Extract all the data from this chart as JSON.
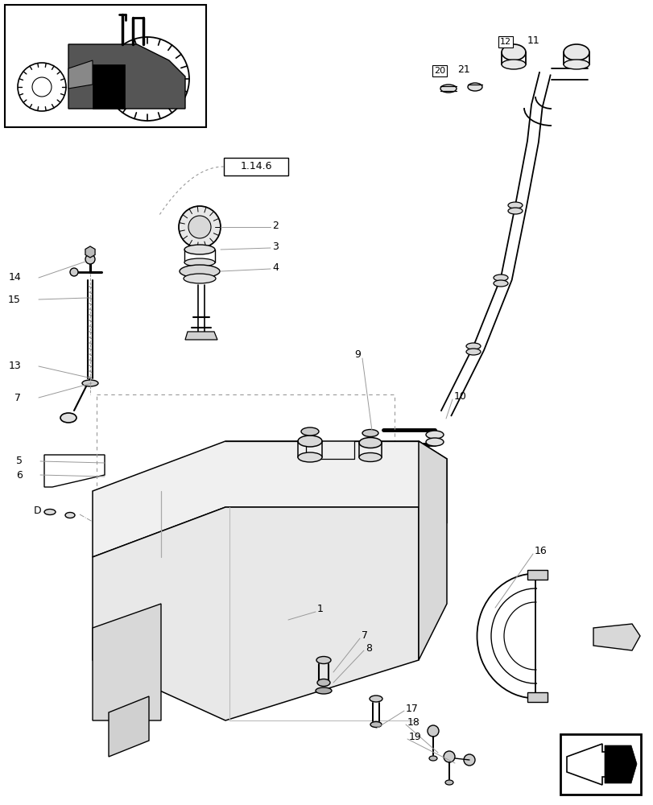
{
  "bg_color": "#ffffff",
  "lc": "#000000",
  "gc": "#999999",
  "fig_w": 8.12,
  "fig_h": 10.0,
  "dpi": 100
}
